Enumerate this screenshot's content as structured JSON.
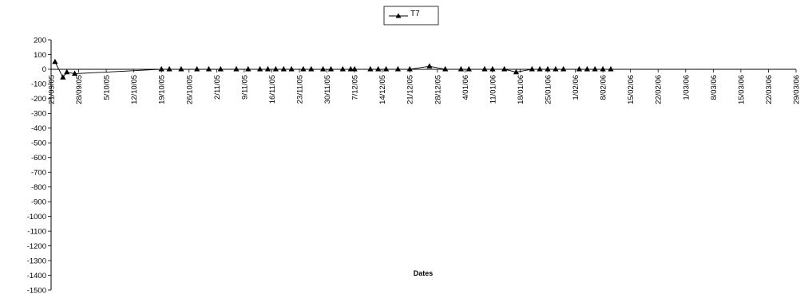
{
  "chart_data": {
    "type": "line",
    "title": "",
    "xlabel": "Dates",
    "ylabel": "",
    "ylim": [
      -1500,
      200
    ],
    "ytick_step": 100,
    "x_tick_labels": [
      "21/09/05",
      "28/09/05",
      "5/10/05",
      "12/10/05",
      "19/10/05",
      "26/10/05",
      "2/11/05",
      "9/11/05",
      "16/11/05",
      "23/11/05",
      "30/11/05",
      "7/12/05",
      "14/12/05",
      "21/12/05",
      "28/12/05",
      "4/01/06",
      "11/01/06",
      "18/01/06",
      "25/01/06",
      "1/02/06",
      "8/02/06",
      "15/02/06",
      "22/02/06",
      "1/03/06",
      "8/03/06",
      "15/03/06",
      "22/03/06",
      "29/03/06"
    ],
    "x_start": "21/09/05",
    "x_end": "29/03/06",
    "grid": false,
    "legend_position": "top-center",
    "line_color": "#000000",
    "marker": "triangle",
    "series": [
      {
        "name": "T7",
        "points": [
          {
            "x": "22/09/05",
            "y": 50
          },
          {
            "x": "24/09/05",
            "y": -55
          },
          {
            "x": "25/09/05",
            "y": -20
          },
          {
            "x": "27/09/05",
            "y": -30
          },
          {
            "x": "19/10/05",
            "y": 0
          },
          {
            "x": "21/10/05",
            "y": 0
          },
          {
            "x": "24/10/05",
            "y": 0
          },
          {
            "x": "28/10/05",
            "y": 0
          },
          {
            "x": "31/10/05",
            "y": 0
          },
          {
            "x": "3/11/05",
            "y": 0
          },
          {
            "x": "7/11/05",
            "y": 0
          },
          {
            "x": "10/11/05",
            "y": 0
          },
          {
            "x": "13/11/05",
            "y": 0
          },
          {
            "x": "15/11/05",
            "y": 0
          },
          {
            "x": "17/11/05",
            "y": 0
          },
          {
            "x": "19/11/05",
            "y": 0
          },
          {
            "x": "21/11/05",
            "y": 0
          },
          {
            "x": "24/11/05",
            "y": 0
          },
          {
            "x": "26/11/05",
            "y": 0
          },
          {
            "x": "29/11/05",
            "y": 0
          },
          {
            "x": "1/12/05",
            "y": 0
          },
          {
            "x": "4/12/05",
            "y": 0
          },
          {
            "x": "6/12/05",
            "y": 0
          },
          {
            "x": "7/12/05",
            "y": 0
          },
          {
            "x": "11/12/05",
            "y": 0
          },
          {
            "x": "13/12/05",
            "y": 0
          },
          {
            "x": "15/12/05",
            "y": 0
          },
          {
            "x": "18/12/05",
            "y": 0
          },
          {
            "x": "21/12/05",
            "y": 0
          },
          {
            "x": "26/12/05",
            "y": 20
          },
          {
            "x": "30/12/05",
            "y": 0
          },
          {
            "x": "3/01/06",
            "y": 0
          },
          {
            "x": "5/01/06",
            "y": 0
          },
          {
            "x": "9/01/06",
            "y": 0
          },
          {
            "x": "11/01/06",
            "y": 0
          },
          {
            "x": "14/01/06",
            "y": 0
          },
          {
            "x": "17/01/06",
            "y": -20
          },
          {
            "x": "21/01/06",
            "y": 0
          },
          {
            "x": "23/01/06",
            "y": 0
          },
          {
            "x": "25/01/06",
            "y": 0
          },
          {
            "x": "27/01/06",
            "y": 0
          },
          {
            "x": "29/01/06",
            "y": 0
          },
          {
            "x": "2/02/06",
            "y": 0
          },
          {
            "x": "4/02/06",
            "y": 0
          },
          {
            "x": "6/02/06",
            "y": 0
          },
          {
            "x": "8/02/06",
            "y": 0
          },
          {
            "x": "10/02/06",
            "y": 0
          }
        ]
      }
    ]
  }
}
